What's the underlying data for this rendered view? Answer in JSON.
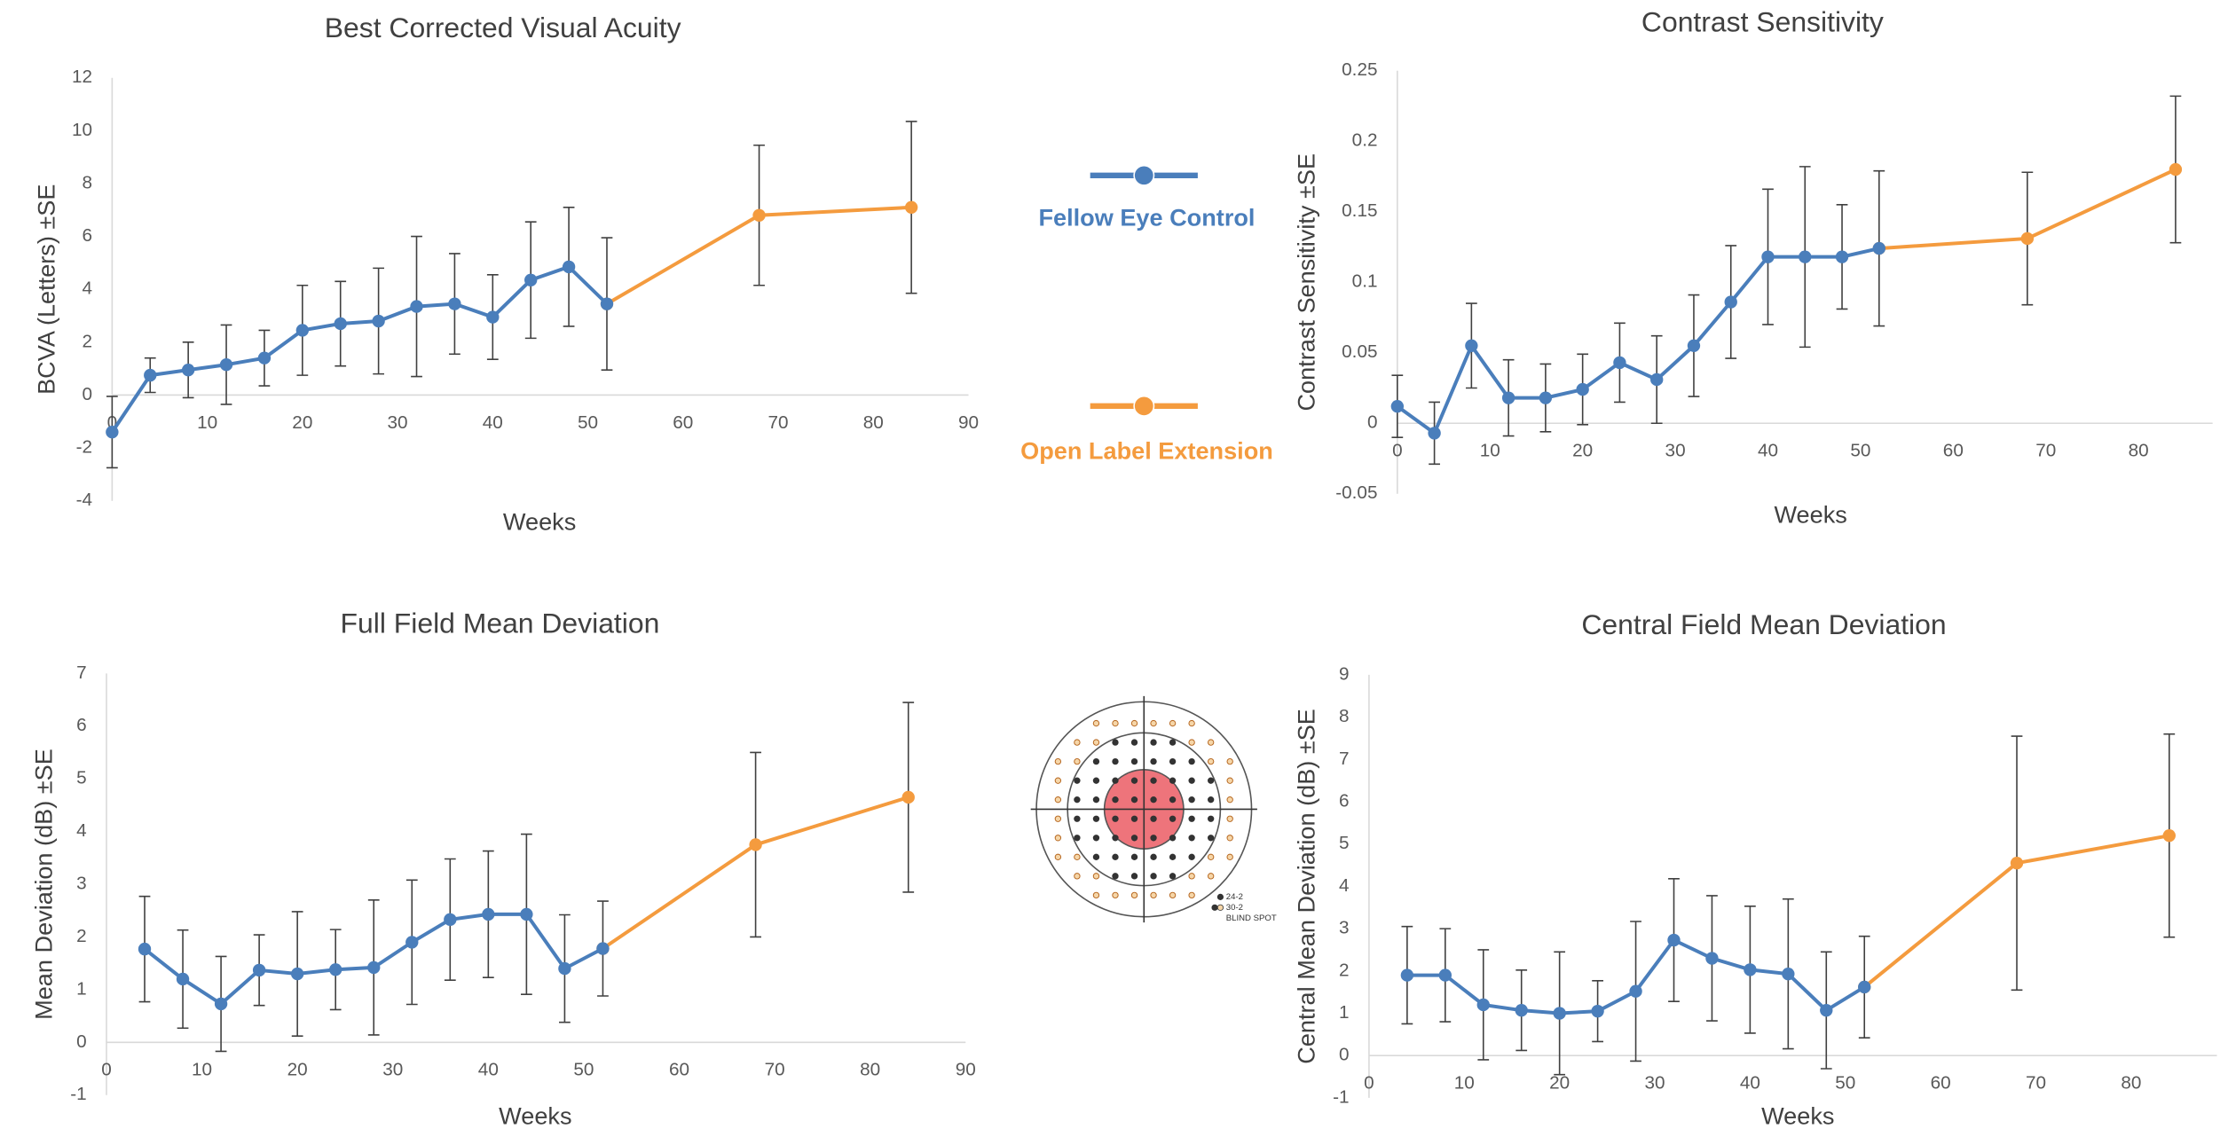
{
  "chart_data": [
    {
      "type": "line",
      "title": "Best Corrected Visual Acuity",
      "x_label": "Weeks",
      "y_label": "BCVA (Letters) ±SE",
      "x": [
        0,
        4,
        8,
        12,
        16,
        20,
        24,
        28,
        32,
        36,
        40,
        44,
        48,
        52,
        68,
        84
      ],
      "xlim": [
        0,
        90
      ],
      "xticks": [
        0,
        10,
        20,
        30,
        40,
        50,
        60,
        70,
        80,
        90
      ],
      "ylim": [
        -4,
        12
      ],
      "yticks": [
        -4,
        -2,
        0,
        2,
        4,
        6,
        8,
        10,
        12
      ],
      "series": [
        {
          "name": "Fellow Eye Control",
          "color": "#4a7ebb",
          "values": [
            -1.4,
            0.75,
            0.95,
            1.15,
            1.4,
            2.45,
            2.7,
            2.8,
            3.35,
            3.45,
            2.95,
            4.35,
            4.85,
            3.45,
            null,
            null
          ],
          "errors": [
            1.35,
            0.65,
            1.05,
            1.5,
            1.05,
            1.7,
            1.6,
            2.0,
            2.65,
            1.9,
            1.6,
            2.2,
            2.25,
            2.5,
            null,
            null
          ]
        },
        {
          "name": "Open Label Extension",
          "color": "#f49b3e",
          "values": [
            null,
            null,
            null,
            null,
            null,
            null,
            null,
            null,
            null,
            null,
            null,
            null,
            null,
            3.45,
            6.8,
            7.1
          ],
          "errors": [
            null,
            null,
            null,
            null,
            null,
            null,
            null,
            null,
            null,
            null,
            null,
            null,
            null,
            null,
            2.65,
            3.25
          ]
        }
      ]
    },
    {
      "type": "line",
      "title": "Contrast Sensitivity",
      "x_label": "Weeks",
      "y_label": "Contrast Sensitivity ±SE",
      "x": [
        0,
        4,
        8,
        12,
        16,
        20,
        24,
        28,
        32,
        36,
        40,
        44,
        48,
        52,
        68,
        84
      ],
      "xlim": [
        0,
        88
      ],
      "xticks": [
        0,
        10,
        20,
        30,
        40,
        50,
        60,
        70,
        80
      ],
      "ylim": [
        -0.05,
        0.25
      ],
      "yticks": [
        -0.05,
        0,
        0.05,
        0.1,
        0.15,
        0.2,
        0.25
      ],
      "series": [
        {
          "color": "#4a7ebb",
          "values": [
            0.012,
            -0.007,
            0.055,
            0.018,
            0.018,
            0.024,
            0.043,
            0.031,
            0.055,
            0.086,
            0.118,
            0.118,
            0.118,
            0.124,
            null,
            null
          ],
          "errors": [
            0.022,
            0.022,
            0.03,
            0.027,
            0.024,
            0.025,
            0.028,
            0.031,
            0.036,
            0.04,
            0.048,
            0.064,
            0.037,
            0.055,
            null,
            null
          ]
        },
        {
          "color": "#f49b3e",
          "values": [
            null,
            null,
            null,
            null,
            null,
            null,
            null,
            null,
            null,
            null,
            null,
            null,
            null,
            0.124,
            0.131,
            0.18
          ],
          "errors": [
            null,
            null,
            null,
            null,
            null,
            null,
            null,
            null,
            null,
            null,
            null,
            null,
            null,
            null,
            0.047,
            0.052
          ]
        }
      ]
    },
    {
      "type": "line",
      "title": "Full Field Mean Deviation",
      "x_label": "Weeks",
      "y_label": "Mean Deviation (dB) ±SE",
      "x": [
        4,
        8,
        12,
        16,
        20,
        24,
        28,
        32,
        36,
        40,
        44,
        48,
        52,
        68,
        84
      ],
      "xlim": [
        0,
        90
      ],
      "xticks": [
        0,
        10,
        20,
        30,
        40,
        50,
        60,
        70,
        80,
        90
      ],
      "ylim": [
        -1,
        7
      ],
      "yticks": [
        -1,
        0,
        1,
        2,
        3,
        4,
        5,
        6,
        7
      ],
      "series": [
        {
          "color": "#4a7ebb",
          "values": [
            1.77,
            1.2,
            0.73,
            1.37,
            1.3,
            1.38,
            1.42,
            1.9,
            2.33,
            2.43,
            2.43,
            1.4,
            1.78,
            null,
            null
          ],
          "errors": [
            1.0,
            0.93,
            0.9,
            0.67,
            1.18,
            0.76,
            1.28,
            1.18,
            1.15,
            1.2,
            1.52,
            1.02,
            0.9,
            null,
            null
          ]
        },
        {
          "color": "#f49b3e",
          "values": [
            null,
            null,
            null,
            null,
            null,
            null,
            null,
            null,
            null,
            null,
            null,
            null,
            1.78,
            3.75,
            4.65
          ],
          "errors": [
            null,
            null,
            null,
            null,
            null,
            null,
            null,
            null,
            null,
            null,
            null,
            null,
            null,
            1.75,
            1.8
          ]
        }
      ]
    },
    {
      "type": "line",
      "title": "Central Field Mean Deviation",
      "x_label": "Weeks",
      "y_label": "Central Mean Deviation (dB) ±SE",
      "x": [
        4,
        8,
        12,
        16,
        20,
        24,
        28,
        32,
        36,
        40,
        44,
        48,
        52,
        68,
        84
      ],
      "xlim": [
        0,
        89
      ],
      "xticks": [
        0,
        10,
        20,
        30,
        40,
        50,
        60,
        70,
        80
      ],
      "ylim": [
        -1,
        9
      ],
      "yticks": [
        -1,
        0,
        1,
        2,
        3,
        4,
        5,
        6,
        7,
        8,
        9
      ],
      "series": [
        {
          "color": "#4a7ebb",
          "values": [
            1.9,
            1.9,
            1.2,
            1.07,
            1.0,
            1.05,
            1.52,
            2.73,
            2.3,
            2.03,
            1.93,
            1.07,
            1.62,
            null,
            null
          ],
          "errors": [
            1.15,
            1.1,
            1.3,
            0.95,
            1.45,
            0.72,
            1.65,
            1.45,
            1.48,
            1.5,
            1.77,
            1.38,
            1.2,
            null,
            null
          ]
        },
        {
          "color": "#f49b3e",
          "values": [
            null,
            null,
            null,
            null,
            null,
            null,
            null,
            null,
            null,
            null,
            null,
            null,
            1.62,
            4.55,
            5.2
          ],
          "errors": [
            null,
            null,
            null,
            null,
            null,
            null,
            null,
            null,
            null,
            null,
            null,
            null,
            null,
            3.0,
            2.4
          ]
        }
      ]
    }
  ],
  "diagram": {
    "labels": [
      "24-2",
      "30-2",
      "BLIND SPOT"
    ]
  }
}
